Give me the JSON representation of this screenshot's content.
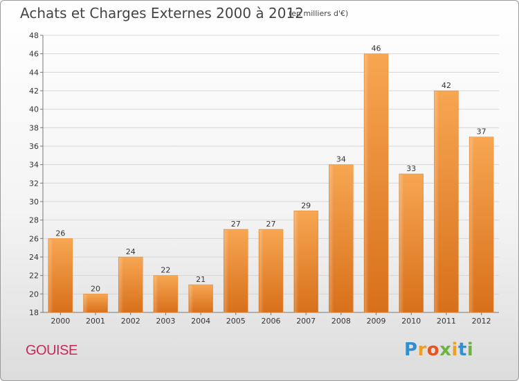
{
  "title": "Achats et Charges Externes 2000 à 2012",
  "unit_note": "(en milliers d'€)",
  "commune": "GOUISE",
  "logo": {
    "text": "Proxiti",
    "colors": [
      "#2f8fd0",
      "#f0a020",
      "#e6551e",
      "#6db33f"
    ]
  },
  "chart_data": {
    "type": "bar",
    "title": "Achats et Charges Externes 2000 à 2012",
    "xlabel": "",
    "ylabel": "",
    "categories": [
      "2000",
      "2001",
      "2002",
      "2003",
      "2004",
      "2005",
      "2006",
      "2007",
      "2008",
      "2009",
      "2010",
      "2011",
      "2012"
    ],
    "values": [
      26,
      20,
      24,
      22,
      21,
      27,
      27,
      29,
      34,
      46,
      33,
      42,
      37
    ],
    "ylim": [
      18,
      48
    ],
    "yticks": [
      18,
      20,
      22,
      24,
      26,
      28,
      30,
      32,
      34,
      36,
      38,
      40,
      42,
      44,
      46,
      48
    ],
    "grid": true,
    "bar_color": "#f0902e",
    "legend": "none"
  }
}
